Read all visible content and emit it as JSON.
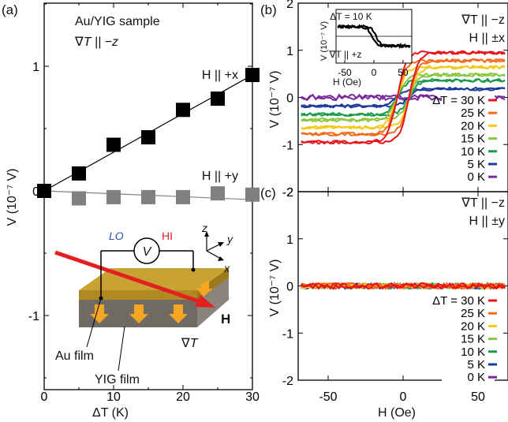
{
  "chart_data": [
    {
      "type": "scatter",
      "panel_label": "(a)",
      "annotation_lines": [
        "Au/YIG sample",
        "∇T || −z"
      ],
      "xlabel": "ΔT (K)",
      "ylabel": "V (10⁻⁷ V)",
      "xlim": [
        0,
        30
      ],
      "ylim": [
        -1.6,
        1.6
      ],
      "xticks": [
        "0",
        "10",
        "20",
        "30"
      ],
      "yticks": [
        "-1",
        "0",
        "1"
      ],
      "series": [
        {
          "name": "H || +x",
          "color": "#000000",
          "x": [
            0,
            5,
            10,
            15,
            20,
            25,
            30
          ],
          "y": [
            0.0,
            0.14,
            0.37,
            0.43,
            0.65,
            0.74,
            0.93
          ],
          "fit": [
            [
              0,
              0.0
            ],
            [
              30,
              0.93
            ]
          ]
        },
        {
          "name": "H || +y",
          "color": "#808080",
          "x": [
            0,
            5,
            10,
            15,
            20,
            25,
            30
          ],
          "y": [
            0.0,
            -0.06,
            -0.05,
            -0.05,
            -0.05,
            -0.02,
            -0.03
          ],
          "fit": [
            [
              0,
              0.0
            ],
            [
              30,
              -0.07
            ]
          ]
        }
      ],
      "inset_labels": {
        "lo": "LO",
        "hi": "HI",
        "v": "V",
        "z": "z",
        "y": "y",
        "x": "x",
        "grad": "∇T",
        "h": "H",
        "au": "Au film",
        "yig": "YIG film"
      },
      "colors": {
        "hi": "#e32020",
        "lo": "#3050b0",
        "au": "#c8a232",
        "yig": "#8a847a",
        "arrow": "#e32020",
        "flux": "#f5a623"
      }
    },
    {
      "type": "line",
      "panel_label": "(b)",
      "annotation_lines": [
        "∇T || −z",
        "H || ±x"
      ],
      "xlabel": "H (Oe)",
      "ylabel": "V (10⁻⁷ V)",
      "xlim": [
        -70,
        70
      ],
      "ylim": [
        -2,
        2
      ],
      "yticks": [
        "-2",
        "-1",
        "0",
        "1",
        "2"
      ],
      "legend_title_prefix": "ΔT =",
      "series": [
        {
          "name": "30 K",
          "color": "#e8141c",
          "sat": 0.95
        },
        {
          "name": "25 K",
          "color": "#f26a1a",
          "sat": 0.78
        },
        {
          "name": "20 K",
          "color": "#f5c818",
          "sat": 0.64
        },
        {
          "name": "15 K",
          "color": "#8cc63e",
          "sat": 0.48
        },
        {
          "name": "10 K",
          "color": "#1a9a4a",
          "sat": 0.36
        },
        {
          "name": "5 K",
          "color": "#1a3a9a",
          "sat": 0.18
        },
        {
          "name": "0 K",
          "color": "#7a2a9a",
          "sat": 0.0
        }
      ],
      "inset": {
        "title": "ΔT = 10 K",
        "note": "∇T || +z",
        "xlabel": "H (Oe)",
        "ylabel": "V (10⁻⁷ V)",
        "xticks": [
          "-50",
          "0",
          "50"
        ],
        "sat": -0.36,
        "xlim": [
          -65,
          65
        ],
        "ylim": [
          -1,
          1
        ]
      }
    },
    {
      "type": "line",
      "panel_label": "(c)",
      "annotation_lines": [
        "∇T || −z",
        "H || ±y"
      ],
      "xlabel": "H (Oe)",
      "ylabel": "V (10⁻⁷ V)",
      "xlim": [
        -70,
        70
      ],
      "ylim": [
        -2,
        2
      ],
      "xticks": [
        "-50",
        "0",
        "50"
      ],
      "yticks": [
        "-2",
        "-1",
        "0",
        "1",
        "2"
      ],
      "legend_title_prefix": "ΔT =",
      "series": [
        {
          "name": "30 K",
          "color": "#e8141c",
          "sat": 0.0
        },
        {
          "name": "25 K",
          "color": "#f26a1a",
          "sat": 0.0
        },
        {
          "name": "20 K",
          "color": "#f5c818",
          "sat": 0.0
        },
        {
          "name": "15 K",
          "color": "#8cc63e",
          "sat": 0.0
        },
        {
          "name": "10 K",
          "color": "#1a9a4a",
          "sat": 0.0
        },
        {
          "name": "5 K",
          "color": "#1a3a9a",
          "sat": 0.0
        },
        {
          "name": "0 K",
          "color": "#7a2a9a",
          "sat": 0.0
        }
      ]
    }
  ]
}
